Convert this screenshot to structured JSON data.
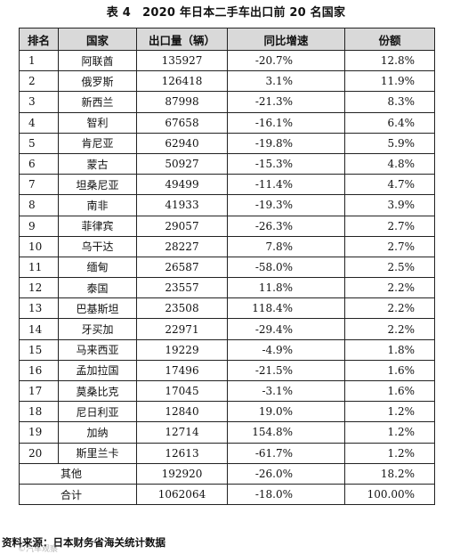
{
  "title": "表 4　2020 年日本二手车出口前 20 名国家",
  "table": {
    "headers": [
      "排名",
      "国家",
      "出口量（辆）",
      "同比增速",
      "份额"
    ],
    "rows": [
      [
        "1",
        "阿联酋",
        "135927",
        "-20.7%",
        "12.8%"
      ],
      [
        "2",
        "俄罗斯",
        "126418",
        "3.1%",
        "11.9%"
      ],
      [
        "3",
        "新西兰",
        "87998",
        "-21.3%",
        "8.3%"
      ],
      [
        "4",
        "智利",
        "67658",
        "-16.1%",
        "6.4%"
      ],
      [
        "5",
        "肯尼亚",
        "62940",
        "-19.8%",
        "5.9%"
      ],
      [
        "6",
        "蒙古",
        "50927",
        "-15.3%",
        "4.8%"
      ],
      [
        "7",
        "坦桑尼亚",
        "49499",
        "-11.4%",
        "4.7%"
      ],
      [
        "8",
        "南非",
        "41933",
        "-19.3%",
        "3.9%"
      ],
      [
        "9",
        "菲律宾",
        "29057",
        "-26.3%",
        "2.7%"
      ],
      [
        "10",
        "乌干达",
        "28227",
        "7.8%",
        "2.7%"
      ],
      [
        "11",
        "缅甸",
        "26587",
        "-58.0%",
        "2.5%"
      ],
      [
        "12",
        "泰国",
        "23557",
        "11.8%",
        "2.2%"
      ],
      [
        "13",
        "巴基斯坦",
        "23508",
        "118.4%",
        "2.2%"
      ],
      [
        "14",
        "牙买加",
        "22971",
        "-29.4%",
        "2.2%"
      ],
      [
        "15",
        "马来西亚",
        "19229",
        "-4.9%",
        "1.8%"
      ],
      [
        "16",
        "孟加拉国",
        "17496",
        "-21.5%",
        "1.6%"
      ],
      [
        "17",
        "莫桑比克",
        "17045",
        "-3.1%",
        "1.6%"
      ],
      [
        "18",
        "尼日利亚",
        "12840",
        "19.0%",
        "1.2%"
      ],
      [
        "19",
        "加纳",
        "12714",
        "154.8%",
        "1.2%"
      ],
      [
        "20",
        "斯里兰卡",
        "12613",
        "-61.7%",
        "1.2%"
      ]
    ],
    "others": {
      "label": "其他",
      "volume": "192920",
      "yoy": "-26.0%",
      "share": "18.2%"
    },
    "total": {
      "label": "合计",
      "volume": "1062064",
      "yoy": "-18.0%",
      "share": "100.00%"
    }
  },
  "source": "资料来源：日本财务省海关统计数据",
  "watermark": "©汽车观察"
}
